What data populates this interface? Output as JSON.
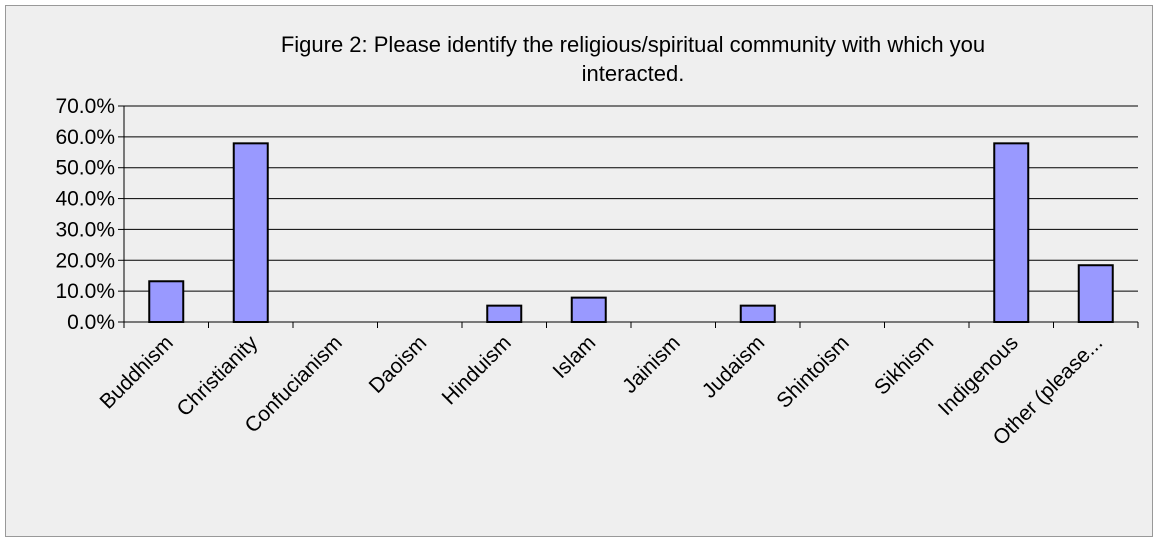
{
  "chart_data": {
    "type": "bar",
    "title_lines": [
      "Figure 2:  Please identify the religious/spiritual community with which you",
      "interacted."
    ],
    "categories": [
      "Buddhism",
      "Christianity",
      "Confucianism",
      "Daoism",
      "Hinduism",
      "Islam",
      "Jainism",
      "Judaism",
      "Shintoism",
      "Sikhism",
      "Indigenous",
      "Other (please..."
    ],
    "values": [
      13.2,
      57.9,
      0,
      0,
      5.3,
      7.9,
      0,
      5.3,
      0,
      0,
      57.9,
      18.4
    ],
    "ylim": [
      0,
      70
    ],
    "yticks": [
      0,
      10,
      20,
      30,
      40,
      50,
      60,
      70
    ],
    "ytick_labels": [
      "0.0%",
      "10.0%",
      "20.0%",
      "30.0%",
      "40.0%",
      "50.0%",
      "60.0%",
      "70.0%"
    ],
    "grid": true,
    "legend": false,
    "colors": {
      "bar_fill": "#9999ff",
      "bar_stroke": "#000000",
      "grid": "#000000",
      "background": "#efefef"
    }
  }
}
